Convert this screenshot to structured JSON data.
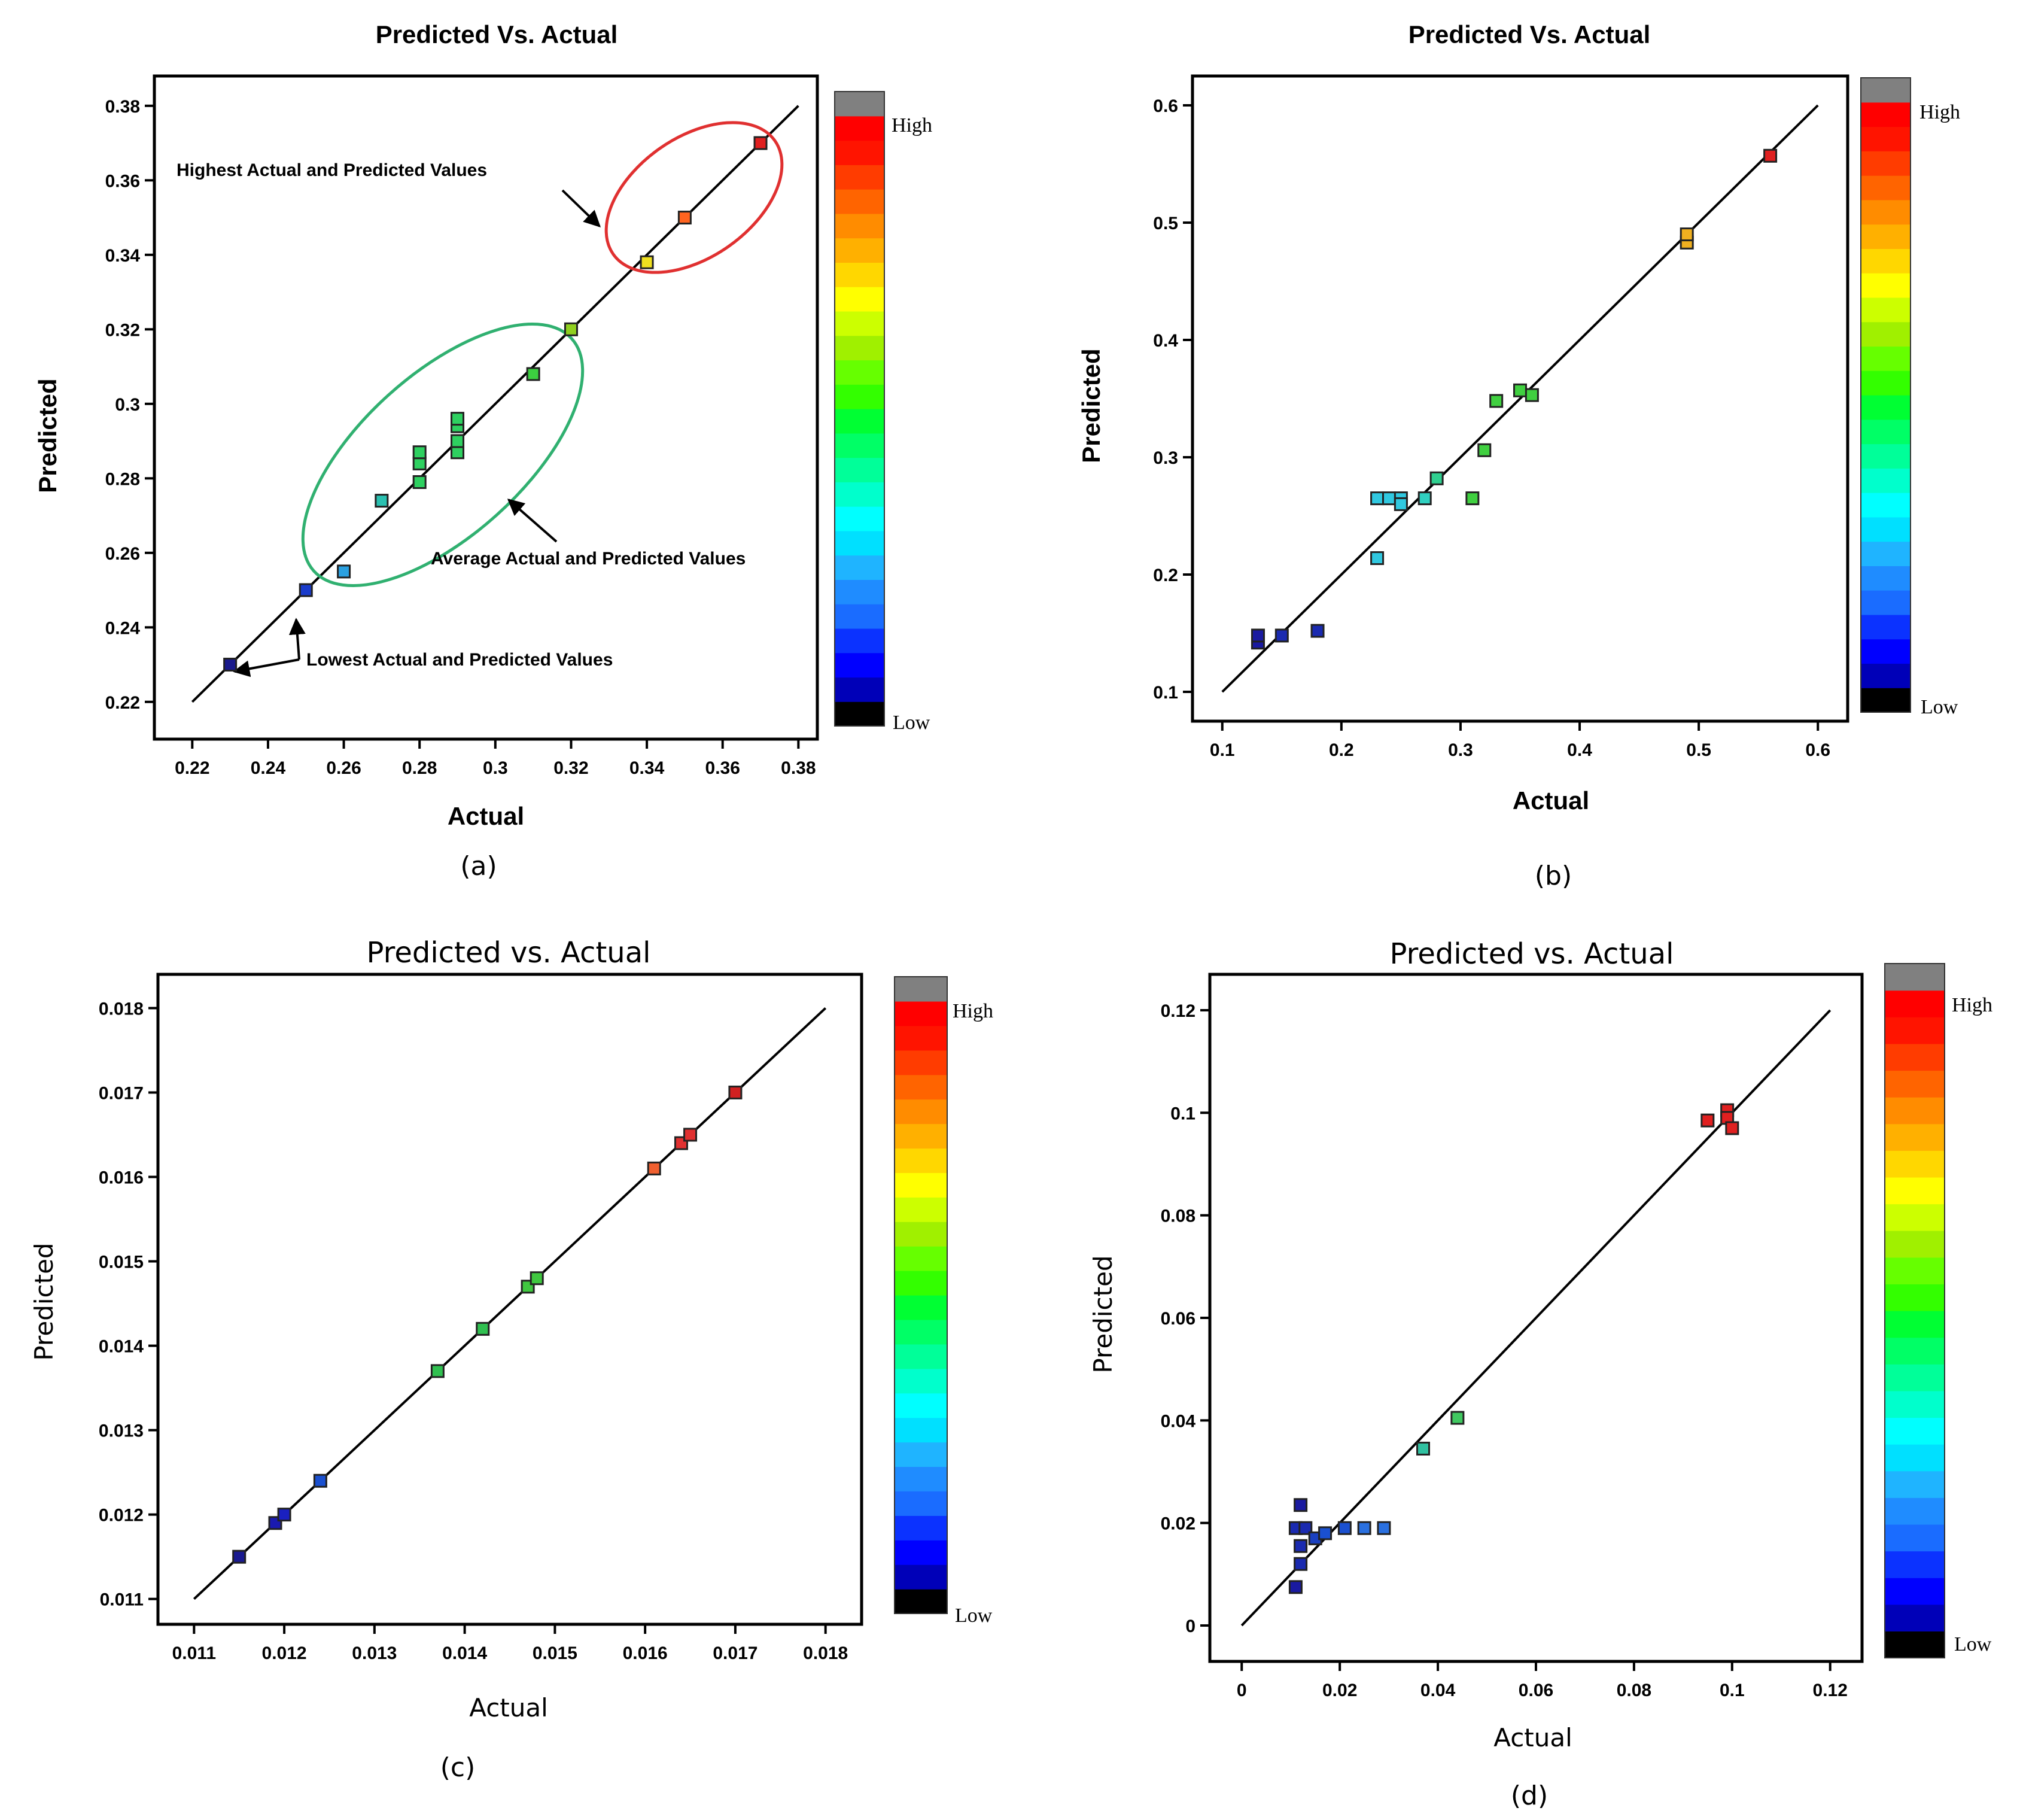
{
  "figure": {
    "colorbar_levels": [
      "#000000",
      "#0000b8",
      "#0000ff",
      "#0b32ff",
      "#1a6cff",
      "#1f8cff",
      "#1fb4ff",
      "#00e0ff",
      "#00ffff",
      "#00ffcc",
      "#00ff99",
      "#00ff66",
      "#00ff33",
      "#33ff00",
      "#66ff00",
      "#a0f000",
      "#ccff00",
      "#ffff00",
      "#ffd700",
      "#ffb000",
      "#ff8c00",
      "#ff6400",
      "#ff3c00",
      "#ff1400",
      "#ff0000",
      "#808080"
    ]
  },
  "chart_data": [
    {
      "id": "a",
      "panel_label": "(a)",
      "type": "scatter",
      "title": "Predicted Vs. Actual",
      "xlabel": "Actual",
      "ylabel": "Predicted",
      "xlim": [
        0.21,
        0.385
      ],
      "ylim": [
        0.21,
        0.388
      ],
      "xticks": [
        0.22,
        0.24,
        0.26,
        0.28,
        0.3,
        0.32,
        0.34,
        0.36,
        0.38
      ],
      "xtick_labels": [
        "0.22",
        "0.24",
        "0.26",
        "0.28",
        "0.3",
        "0.32",
        "0.34",
        "0.36",
        "0.38"
      ],
      "yticks": [
        0.22,
        0.24,
        0.26,
        0.28,
        0.3,
        0.32,
        0.34,
        0.36,
        0.38
      ],
      "ytick_labels": [
        "0.22",
        "0.24",
        "0.26",
        "0.28",
        "0.3",
        "0.32",
        "0.34",
        "0.36",
        "0.38"
      ],
      "diag": [
        0.22,
        0.38
      ],
      "colorbar": {
        "high": "High",
        "low": "Low"
      },
      "points": [
        {
          "x": 0.23,
          "y": 0.23,
          "color": "#1a1a8c"
        },
        {
          "x": 0.25,
          "y": 0.25,
          "color": "#1a3ccc"
        },
        {
          "x": 0.26,
          "y": 0.255,
          "color": "#2aa0e0"
        },
        {
          "x": 0.27,
          "y": 0.274,
          "color": "#2ac0b0"
        },
        {
          "x": 0.28,
          "y": 0.279,
          "color": "#2ed060"
        },
        {
          "x": 0.28,
          "y": 0.284,
          "color": "#2ed060"
        },
        {
          "x": 0.28,
          "y": 0.287,
          "color": "#2ed060"
        },
        {
          "x": 0.29,
          "y": 0.287,
          "color": "#2ed060"
        },
        {
          "x": 0.29,
          "y": 0.29,
          "color": "#2ed060"
        },
        {
          "x": 0.29,
          "y": 0.294,
          "color": "#2ed060"
        },
        {
          "x": 0.29,
          "y": 0.296,
          "color": "#2ed060"
        },
        {
          "x": 0.31,
          "y": 0.308,
          "color": "#3cd040"
        },
        {
          "x": 0.32,
          "y": 0.32,
          "color": "#90d020"
        },
        {
          "x": 0.34,
          "y": 0.338,
          "color": "#f0e020"
        },
        {
          "x": 0.35,
          "y": 0.35,
          "color": "#ff6420"
        },
        {
          "x": 0.37,
          "y": 0.37,
          "color": "#e02020"
        }
      ],
      "annotations": {
        "highest": "Highest Actual and Predicted Values",
        "average": "Average Actual and Predicted Values",
        "lowest": "Lowest Actual and Predicted Values"
      }
    },
    {
      "id": "b",
      "panel_label": "(b)",
      "type": "scatter",
      "title": "Predicted Vs. Actual",
      "xlabel": "Actual",
      "ylabel": "Predicted",
      "xlim": [
        0.075,
        0.625
      ],
      "ylim": [
        0.075,
        0.625
      ],
      "xticks": [
        0.1,
        0.2,
        0.3,
        0.4,
        0.5,
        0.6
      ],
      "xtick_labels": [
        "0.1",
        "0.2",
        "0.3",
        "0.4",
        "0.5",
        "0.6"
      ],
      "yticks": [
        0.1,
        0.2,
        0.3,
        0.4,
        0.5,
        0.6
      ],
      "ytick_labels": [
        "0.1",
        "0.2",
        "0.3",
        "0.4",
        "0.5",
        "0.6"
      ],
      "diag": [
        0.1,
        0.6
      ],
      "colorbar": {
        "high": "High",
        "low": "Low"
      },
      "points": [
        {
          "x": 0.13,
          "y": 0.142,
          "color": "#1a1aa0"
        },
        {
          "x": 0.13,
          "y": 0.148,
          "color": "#1a1aa0"
        },
        {
          "x": 0.15,
          "y": 0.148,
          "color": "#1a2ab0"
        },
        {
          "x": 0.18,
          "y": 0.152,
          "color": "#1a2ab0"
        },
        {
          "x": 0.23,
          "y": 0.214,
          "color": "#30c8e0"
        },
        {
          "x": 0.23,
          "y": 0.265,
          "color": "#30c8e0"
        },
        {
          "x": 0.24,
          "y": 0.265,
          "color": "#30c8e0"
        },
        {
          "x": 0.25,
          "y": 0.265,
          "color": "#30c8e0"
        },
        {
          "x": 0.25,
          "y": 0.26,
          "color": "#30c8e0"
        },
        {
          "x": 0.27,
          "y": 0.265,
          "color": "#30d0c0"
        },
        {
          "x": 0.28,
          "y": 0.282,
          "color": "#30d090"
        },
        {
          "x": 0.31,
          "y": 0.265,
          "color": "#40d040"
        },
        {
          "x": 0.32,
          "y": 0.306,
          "color": "#40d040"
        },
        {
          "x": 0.33,
          "y": 0.348,
          "color": "#40d040"
        },
        {
          "x": 0.35,
          "y": 0.357,
          "color": "#40d040"
        },
        {
          "x": 0.36,
          "y": 0.353,
          "color": "#40d040"
        },
        {
          "x": 0.49,
          "y": 0.483,
          "color": "#f0b020"
        },
        {
          "x": 0.49,
          "y": 0.49,
          "color": "#f0b020"
        },
        {
          "x": 0.56,
          "y": 0.557,
          "color": "#e02020"
        }
      ]
    },
    {
      "id": "c",
      "panel_label": "(c)",
      "type": "scatter",
      "title": "Predicted vs. Actual",
      "xlabel": "Actual",
      "ylabel": "Predicted",
      "xlim": [
        0.0106,
        0.0184
      ],
      "ylim": [
        0.0107,
        0.0184
      ],
      "xticks": [
        0.011,
        0.012,
        0.013,
        0.014,
        0.015,
        0.016,
        0.017,
        0.018
      ],
      "xtick_labels": [
        "0.011",
        "0.012",
        "0.013",
        "0.014",
        "0.015",
        "0.016",
        "0.017",
        "0.018"
      ],
      "yticks": [
        0.011,
        0.012,
        0.013,
        0.014,
        0.015,
        0.016,
        0.017,
        0.018
      ],
      "ytick_labels": [
        "0.011",
        "0.012",
        "0.013",
        "0.014",
        "0.015",
        "0.016",
        "0.017",
        "0.018"
      ],
      "diag": [
        0.011,
        0.018
      ],
      "colorbar": {
        "high": "High",
        "low": "Low"
      },
      "points": [
        {
          "x": 0.0115,
          "y": 0.0115,
          "color": "#1a1a90"
        },
        {
          "x": 0.0119,
          "y": 0.0119,
          "color": "#1a1ab0"
        },
        {
          "x": 0.012,
          "y": 0.012,
          "color": "#1a20c0"
        },
        {
          "x": 0.0124,
          "y": 0.0124,
          "color": "#1a50d0"
        },
        {
          "x": 0.0137,
          "y": 0.0137,
          "color": "#30c050"
        },
        {
          "x": 0.0142,
          "y": 0.0142,
          "color": "#30c050"
        },
        {
          "x": 0.0147,
          "y": 0.0147,
          "color": "#40c840"
        },
        {
          "x": 0.0148,
          "y": 0.0148,
          "color": "#40c840"
        },
        {
          "x": 0.0161,
          "y": 0.0161,
          "color": "#f06030"
        },
        {
          "x": 0.0164,
          "y": 0.0164,
          "color": "#e03030"
        },
        {
          "x": 0.0165,
          "y": 0.0165,
          "color": "#e03030"
        },
        {
          "x": 0.017,
          "y": 0.017,
          "color": "#d02020"
        }
      ]
    },
    {
      "id": "d",
      "panel_label": "(d)",
      "type": "scatter",
      "title": "Predicted vs. Actual",
      "xlabel": "Actual",
      "ylabel": "Predicted",
      "xlim": [
        -0.0065,
        0.1265
      ],
      "ylim": [
        -0.007,
        0.127
      ],
      "xticks": [
        0,
        0.02,
        0.04,
        0.06,
        0.08,
        0.1,
        0.12
      ],
      "xtick_labels": [
        "0",
        "0.02",
        "0.04",
        "0.06",
        "0.08",
        "0.1",
        "0.12"
      ],
      "yticks": [
        0,
        0.02,
        0.04,
        0.06,
        0.08,
        0.1,
        0.12
      ],
      "ytick_labels": [
        "0",
        "0.02",
        "0.04",
        "0.06",
        "0.08",
        "0.1",
        "0.12"
      ],
      "diag": [
        0,
        0.12
      ],
      "colorbar": {
        "high": "High",
        "low": "Low"
      },
      "points": [
        {
          "x": 0.011,
          "y": 0.0075,
          "color": "#1a1aa0"
        },
        {
          "x": 0.011,
          "y": 0.019,
          "color": "#1a2ab0"
        },
        {
          "x": 0.012,
          "y": 0.0235,
          "color": "#1a1aa0"
        },
        {
          "x": 0.012,
          "y": 0.012,
          "color": "#1a2ab0"
        },
        {
          "x": 0.012,
          "y": 0.0155,
          "color": "#1a2ab0"
        },
        {
          "x": 0.013,
          "y": 0.019,
          "color": "#1a2ab0"
        },
        {
          "x": 0.015,
          "y": 0.017,
          "color": "#1a40c0"
        },
        {
          "x": 0.017,
          "y": 0.018,
          "color": "#1a50d0"
        },
        {
          "x": 0.021,
          "y": 0.019,
          "color": "#1a50d0"
        },
        {
          "x": 0.025,
          "y": 0.019,
          "color": "#2a70e0"
        },
        {
          "x": 0.029,
          "y": 0.019,
          "color": "#2a70e0"
        },
        {
          "x": 0.037,
          "y": 0.0345,
          "color": "#30c0a0"
        },
        {
          "x": 0.044,
          "y": 0.0405,
          "color": "#40c860"
        },
        {
          "x": 0.095,
          "y": 0.0985,
          "color": "#e02020"
        },
        {
          "x": 0.099,
          "y": 0.1005,
          "color": "#e02020"
        },
        {
          "x": 0.099,
          "y": 0.099,
          "color": "#e02020"
        },
        {
          "x": 0.1,
          "y": 0.097,
          "color": "#e02020"
        }
      ]
    }
  ]
}
